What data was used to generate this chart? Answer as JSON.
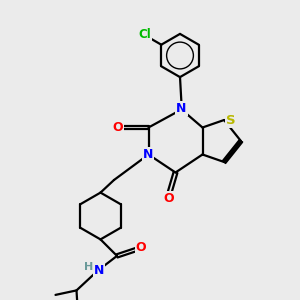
{
  "bg_color": "#ebebeb",
  "atom_colors": {
    "C": "#000000",
    "N": "#0000ff",
    "O": "#ff0000",
    "S": "#b8b800",
    "Cl": "#00bb00",
    "H": "#6a9a9a"
  },
  "bond_color": "#000000",
  "bond_width": 1.6
}
